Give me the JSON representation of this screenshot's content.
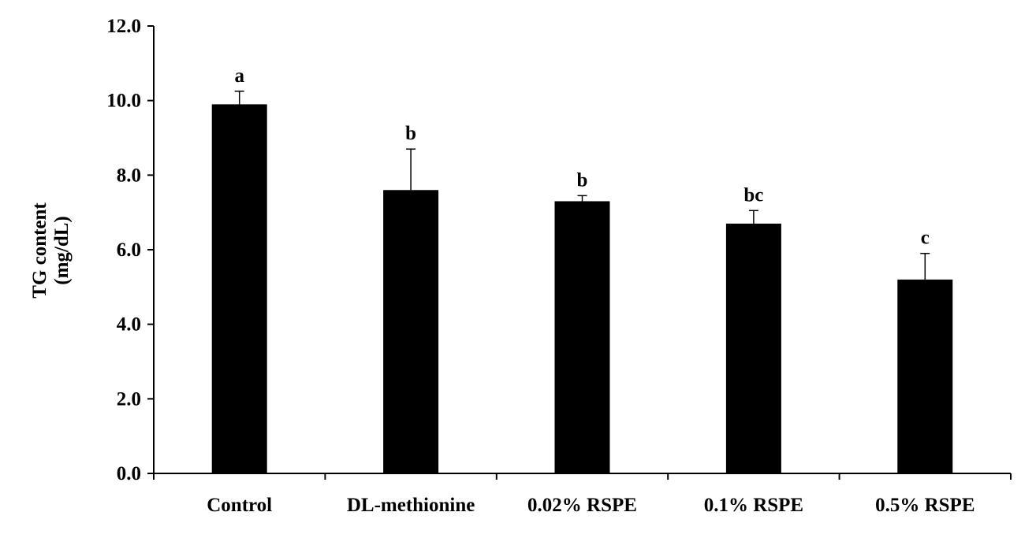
{
  "chart_data": {
    "type": "bar",
    "title": "",
    "xlabel": "",
    "ylabel": [
      "TG content",
      "(mg/dL)"
    ],
    "ylim": [
      0,
      12
    ],
    "y_ticks": [
      "0.0",
      "2.0",
      "4.0",
      "6.0",
      "8.0",
      "10.0",
      "12.0"
    ],
    "y_tick_values": [
      0,
      2,
      4,
      6,
      8,
      10,
      12
    ],
    "categories": [
      "Control",
      "DL-methionine",
      "0.02% RSPE",
      "0.1% RSPE",
      "0.5% RSPE"
    ],
    "values": [
      9.9,
      7.6,
      7.3,
      6.7,
      5.2
    ],
    "error": [
      0.35,
      1.1,
      0.15,
      0.35,
      0.7
    ],
    "significance": [
      "a",
      "b",
      "b",
      "bc",
      "c"
    ],
    "grid": false,
    "legend": "none",
    "bar_color": "#000000"
  }
}
